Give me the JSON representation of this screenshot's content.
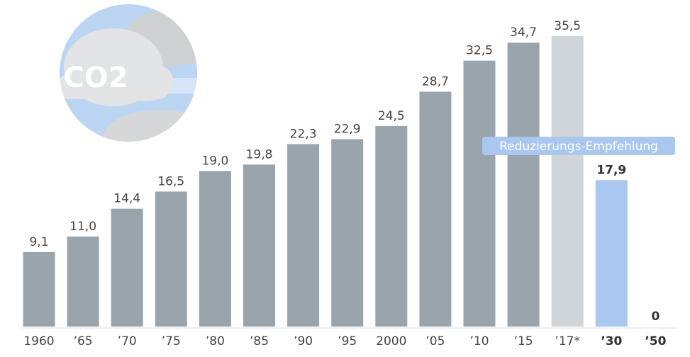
{
  "chart_data": {
    "type": "bar",
    "icon_label": "CO2",
    "categories": [
      "1960",
      "’65",
      "’70",
      "’75",
      "’80",
      "’85",
      "’90",
      "’95",
      "2000",
      "’05",
      "’10",
      "’15",
      "’17*",
      "’30",
      "’50"
    ],
    "values": [
      9.1,
      11.0,
      14.4,
      16.5,
      19.0,
      19.8,
      22.3,
      22.9,
      24.5,
      28.7,
      32.5,
      34.7,
      35.5,
      17.9,
      0
    ],
    "value_labels": [
      "9,1",
      "11,0",
      "14,4",
      "16,5",
      "19,0",
      "19,8",
      "22,3",
      "22,9",
      "24,5",
      "28,7",
      "32,5",
      "34,7",
      "35,5",
      "17,9",
      "0"
    ],
    "colors": [
      "#9aa4ac",
      "#9aa4ac",
      "#9aa4ac",
      "#9aa4ac",
      "#9aa4ac",
      "#9aa4ac",
      "#9aa4ac",
      "#9aa4ac",
      "#9aa4ac",
      "#9aa4ac",
      "#9aa4ac",
      "#9aa4ac",
      "#d0d5d9",
      "#a9c7ef",
      "#a9c7ef"
    ],
    "annotation": "Reduzierungs-Empfehlung"
  }
}
